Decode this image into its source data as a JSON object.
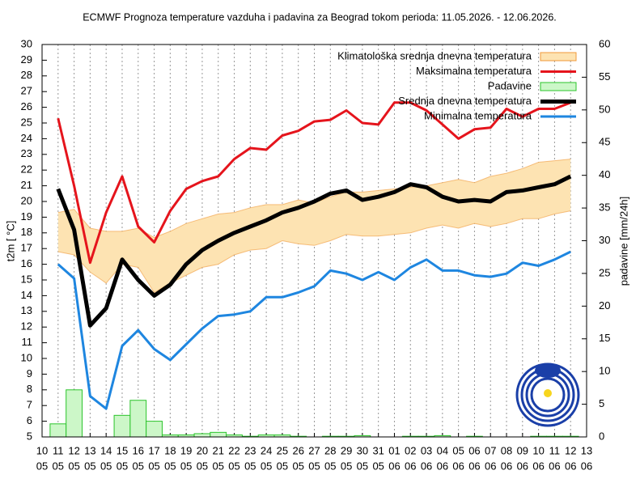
{
  "chart_data": {
    "type": "combo",
    "title": "ECMWF Prognoza temperature vazduha i padavina za Beograd tokom perioda: 11.05.2026. - 12.06.2026.",
    "ylabel": "t2m [ °C]",
    "y2label": "padavine [mm/24h]",
    "categories": [
      [
        "10",
        "05"
      ],
      [
        "11",
        "05"
      ],
      [
        "12",
        "05"
      ],
      [
        "13",
        "05"
      ],
      [
        "14",
        "05"
      ],
      [
        "15",
        "05"
      ],
      [
        "16",
        "05"
      ],
      [
        "17",
        "05"
      ],
      [
        "18",
        "05"
      ],
      [
        "19",
        "05"
      ],
      [
        "20",
        "05"
      ],
      [
        "21",
        "05"
      ],
      [
        "22",
        "05"
      ],
      [
        "23",
        "05"
      ],
      [
        "24",
        "05"
      ],
      [
        "25",
        "05"
      ],
      [
        "26",
        "05"
      ],
      [
        "27",
        "05"
      ],
      [
        "28",
        "05"
      ],
      [
        "29",
        "05"
      ],
      [
        "30",
        "05"
      ],
      [
        "31",
        "05"
      ],
      [
        "01",
        "06"
      ],
      [
        "02",
        "06"
      ],
      [
        "03",
        "06"
      ],
      [
        "04",
        "06"
      ],
      [
        "05",
        "06"
      ],
      [
        "06",
        "06"
      ],
      [
        "07",
        "06"
      ],
      [
        "08",
        "06"
      ],
      [
        "09",
        "06"
      ],
      [
        "10",
        "06"
      ],
      [
        "11",
        "06"
      ],
      [
        "12",
        "06"
      ],
      [
        "13",
        "06"
      ]
    ],
    "ylim": [
      5,
      30
    ],
    "yticks": [
      5,
      6,
      7,
      8,
      9,
      10,
      11,
      12,
      13,
      14,
      15,
      16,
      17,
      18,
      19,
      20,
      21,
      22,
      23,
      24,
      25,
      26,
      27,
      28,
      29,
      30
    ],
    "y2lim": [
      0,
      60
    ],
    "y2ticks": [
      0,
      5,
      10,
      15,
      20,
      25,
      30,
      35,
      40,
      45,
      50,
      55,
      60
    ],
    "grid": "x",
    "legend": "top-right",
    "series": [
      {
        "name": "Klimatološka srednja dnevna temperatura",
        "type": "band",
        "color": "#fde3b2",
        "edge": "#f09a3a",
        "upper": [
          null,
          19.3,
          19.5,
          18.3,
          18.1,
          18.1,
          18.3,
          17.7,
          18.1,
          18.6,
          18.9,
          19.2,
          19.3,
          19.6,
          19.8,
          19.8,
          20.1,
          19.9,
          20.3,
          20.6,
          20.6,
          20.7,
          20.8,
          20.9,
          21,
          21.2,
          21.4,
          21.2,
          21.6,
          21.8,
          22.1,
          22.5,
          22.6,
          22.7,
          null
        ],
        "lower": [
          null,
          16.8,
          16.6,
          15.5,
          14.8,
          16,
          15.8,
          14.2,
          14.8,
          15.3,
          15.8,
          16,
          16.6,
          16.9,
          17,
          17.5,
          17.3,
          17.2,
          17.5,
          17.9,
          17.8,
          17.8,
          17.9,
          18,
          18.3,
          18.5,
          18.3,
          18.6,
          18.4,
          18.6,
          18.9,
          18.9,
          19.2,
          19.4,
          null
        ]
      },
      {
        "name": "Maksimalna temperatura",
        "type": "line",
        "color": "#e5141c",
        "width": 3,
        "values": [
          null,
          25.3,
          21,
          16.1,
          19.3,
          21.6,
          18.4,
          17.4,
          19.4,
          20.8,
          21.3,
          21.6,
          22.7,
          23.4,
          23.3,
          24.2,
          24.5,
          25.1,
          25.2,
          25.8,
          25,
          24.9,
          26.3,
          26.3,
          25.8,
          24.9,
          24,
          24.6,
          24.7,
          25.9,
          25.4,
          25.9,
          25.9,
          26.3,
          null
        ]
      },
      {
        "name": "Padavine",
        "type": "bar",
        "axis": "y2",
        "color": "#ccf7c8",
        "edge": "#2bc42b",
        "values": [
          null,
          2,
          7.2,
          0,
          0,
          3.3,
          5.6,
          2.4,
          0.3,
          0.3,
          0.5,
          0.7,
          0.3,
          0.1,
          0.3,
          0.3,
          0.1,
          0,
          0.1,
          0.1,
          0.2,
          0,
          0,
          0.1,
          0.1,
          0.2,
          0,
          0.1,
          0,
          0,
          0,
          0.1,
          0.1,
          0.1,
          null
        ]
      },
      {
        "name": "Srednja dnevna temperatura",
        "type": "line",
        "color": "#000000",
        "width": 5,
        "values": [
          null,
          20.8,
          18.2,
          12.1,
          13.2,
          16.3,
          15,
          14,
          14.7,
          16,
          16.9,
          17.5,
          18,
          18.4,
          18.8,
          19.3,
          19.6,
          20,
          20.5,
          20.7,
          20.1,
          20.3,
          20.6,
          21.1,
          20.9,
          20.3,
          20,
          20.1,
          20,
          20.6,
          20.7,
          20.9,
          21.1,
          21.6,
          null
        ]
      },
      {
        "name": "Minimalna temperatura",
        "type": "line",
        "color": "#1e86e0",
        "width": 3,
        "values": [
          null,
          16,
          15.1,
          7.6,
          6.8,
          10.8,
          11.8,
          10.6,
          9.9,
          10.9,
          11.9,
          12.7,
          12.8,
          13,
          13.9,
          13.9,
          14.2,
          14.6,
          15.6,
          15.4,
          15,
          15.5,
          15,
          15.8,
          16.3,
          15.6,
          15.6,
          15.3,
          15.2,
          15.4,
          16.1,
          15.9,
          16.3,
          16.8,
          null
        ]
      }
    ]
  }
}
